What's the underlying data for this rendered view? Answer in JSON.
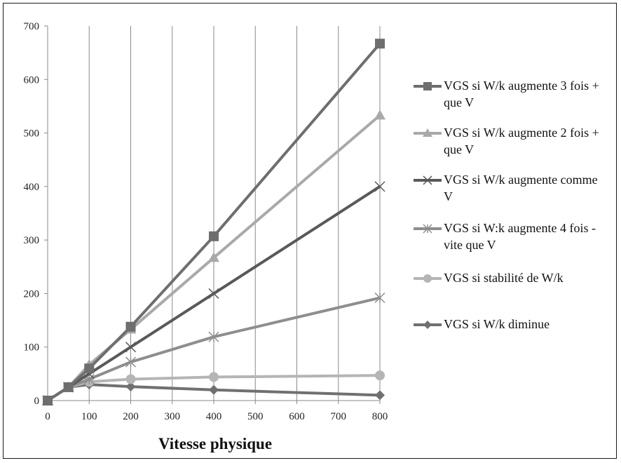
{
  "chart_data": {
    "type": "line",
    "title": "",
    "xlabel": "Vitesse physique",
    "ylabel": "",
    "xlim": [
      0,
      800
    ],
    "ylim": [
      0,
      700
    ],
    "x_ticks": [
      "0",
      "100",
      "200",
      "300",
      "400",
      "500",
      "600",
      "700",
      "800"
    ],
    "y_ticks": [
      "0",
      "100",
      "200",
      "300",
      "400",
      "500",
      "600",
      "700"
    ],
    "grid": "vertical",
    "legend_position": "right",
    "x": [
      0,
      50,
      100,
      200,
      400,
      800
    ],
    "series": [
      {
        "name": "VGS si W/k augmente 3 fois + que V",
        "marker": "square",
        "color": "#6e6e6e",
        "values": [
          0,
          25,
          60,
          138,
          307,
          667
        ]
      },
      {
        "name": "VGS si W/k augmente 2 fois + que V",
        "marker": "triangle",
        "color": "#a9a9a9",
        "values": [
          0,
          25,
          67,
          133,
          267,
          533
        ]
      },
      {
        "name": "VGS si W/k augmente comme V",
        "marker": "x",
        "color": "#595959",
        "values": [
          0,
          25,
          50,
          100,
          200,
          400
        ]
      },
      {
        "name": "VGS si W:k augmente 4 fois - vite que V",
        "marker": "star",
        "color": "#8e8e8e",
        "values": [
          0,
          25,
          40,
          72,
          119,
          192
        ]
      },
      {
        "name": "VGS si stabilité de W/k",
        "marker": "circle",
        "color": "#b5b5b5",
        "values": [
          0,
          25,
          35,
          40,
          44,
          47
        ]
      },
      {
        "name": "VGS si W/k diminue",
        "marker": "diamond",
        "color": "#707070",
        "values": [
          0,
          25,
          30,
          26,
          20,
          10
        ]
      }
    ]
  }
}
